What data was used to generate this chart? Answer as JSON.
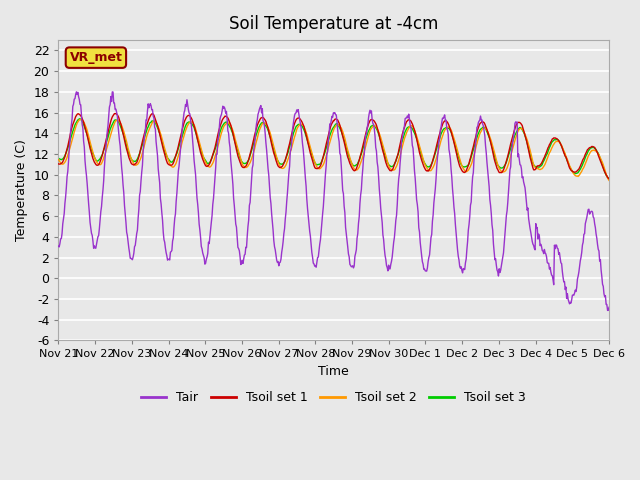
{
  "title": "Soil Temperature at -4cm",
  "xlabel": "Time",
  "ylabel": "Temperature (C)",
  "ylim": [
    -6,
    23
  ],
  "yticks": [
    -6,
    -4,
    -2,
    0,
    2,
    4,
    6,
    8,
    10,
    12,
    14,
    16,
    18,
    20,
    22
  ],
  "bg_color": "#e8e8e8",
  "plot_bg_color": "#e8e8e8",
  "grid_color": "white",
  "tair_color": "#9933cc",
  "tsoil1_color": "#cc0000",
  "tsoil2_color": "#ff9900",
  "tsoil3_color": "#00cc00",
  "legend_labels": [
    "Tair",
    "Tsoil set 1",
    "Tsoil set 2",
    "Tsoil set 3"
  ],
  "vr_met_label": "VR_met",
  "xtick_labels": [
    "Nov 21",
    "Nov 22",
    "Nov 23",
    "Nov 24",
    "Nov 25",
    "Nov 26",
    "Nov 27",
    "Nov 28",
    "Nov 29",
    "Nov 30",
    "Dec 1",
    "Dec 2",
    "Dec 3",
    "Dec 4",
    "Dec 5",
    "Dec 6"
  ],
  "n_days": 15,
  "n_points_per_day": 48
}
